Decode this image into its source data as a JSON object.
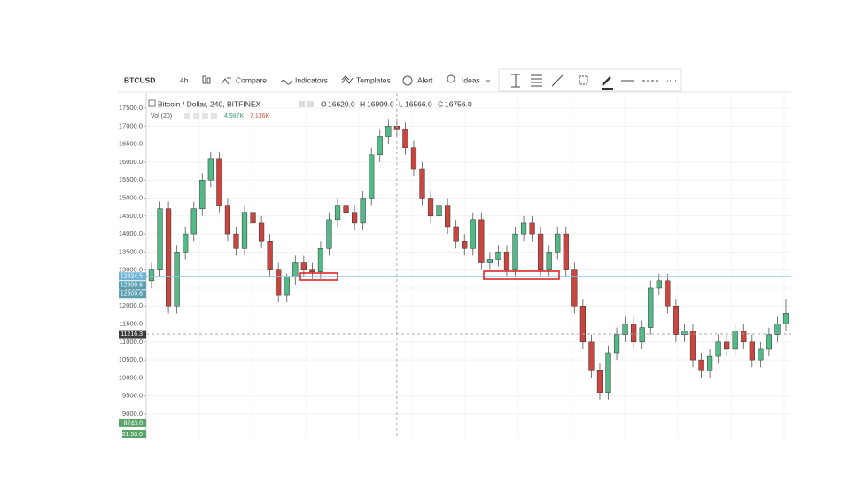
{
  "toolbar": {
    "symbol": "BTCUSD",
    "interval": "4h",
    "items": [
      "Compare",
      "Indicators",
      "Templates",
      "Alert",
      "Ideas"
    ]
  },
  "legend": {
    "title": "Bitcoin / Dollar, 240, BITFINEX",
    "ohlc": [
      {
        "label": "O",
        "value": "16620.0"
      },
      {
        "label": "H",
        "value": "16999.0"
      },
      {
        "label": "L",
        "value": "16566.0"
      },
      {
        "label": "C",
        "value": "16756.0"
      }
    ],
    "volume": {
      "title": "Vol (20)",
      "values": [
        "4.987K",
        "7.136K"
      ]
    }
  },
  "countdown": "01:53:0",
  "chart_data": {
    "type": "candlestick",
    "up_color": "#53b987",
    "down_color": "#c9453f",
    "ylim": [
      8310,
      17920
    ],
    "yticks": [
      {
        "value": 9000,
        "label": "9000.0"
      },
      {
        "value": 9500,
        "label": "9500.0"
      },
      {
        "value": 10000,
        "label": "10000.0"
      },
      {
        "value": 10500,
        "label": "10500.0"
      },
      {
        "value": 11000,
        "label": "11000.0"
      },
      {
        "value": 11500,
        "label": "11500.0"
      },
      {
        "value": 12000,
        "label": "12000.0"
      },
      {
        "value": 12500,
        "label": "12500.0"
      },
      {
        "value": 13000,
        "label": "13000.0"
      },
      {
        "value": 13500,
        "label": "13500.0"
      },
      {
        "value": 14000,
        "label": "14000.0"
      },
      {
        "value": 14500,
        "label": "14500.0"
      },
      {
        "value": 15000,
        "label": "15000.0"
      },
      {
        "value": 15500,
        "label": "15500.0"
      },
      {
        "value": 16000,
        "label": "16000.0"
      },
      {
        "value": 16500,
        "label": "16500.0"
      },
      {
        "value": 17000,
        "label": "17000.0"
      },
      {
        "value": 17500,
        "label": "17500.0"
      }
    ],
    "grid": true,
    "open": [
      12700,
      13000,
      14700,
      12000,
      13500,
      14000,
      14700,
      15500,
      16100,
      14800,
      14000,
      13600,
      14600,
      14300,
      13800,
      13000,
      12300,
      12800,
      13200,
      13000,
      12950,
      13600,
      14400,
      14800,
      14600,
      14300,
      15000,
      16200,
      16700,
      17000,
      16900,
      16400,
      15800,
      15000,
      14500,
      14800,
      14200,
      13800,
      13600,
      14400,
      13200,
      13300,
      13500,
      13000,
      14000,
      14300,
      14000,
      13000,
      13500,
      14000,
      13000,
      12000,
      11000,
      10200,
      9600,
      10700,
      11200,
      11500,
      11000,
      11400,
      12500,
      12700,
      12000,
      11200,
      11300,
      10500,
      10200,
      10600,
      11000,
      10800,
      11300,
      11000,
      10500,
      10800,
      11200,
      11500
    ],
    "high": [
      13200,
      14900,
      14900,
      13700,
      14200,
      14900,
      15700,
      16300,
      16300,
      15000,
      14200,
      14800,
      14800,
      14500,
      14000,
      13200,
      12900,
      13400,
      13400,
      13200,
      13800,
      14600,
      15000,
      15000,
      14800,
      15200,
      16400,
      16900,
      17200,
      17200,
      17100,
      16600,
      16000,
      15200,
      15000,
      15000,
      14400,
      14000,
      14600,
      14600,
      13500,
      13700,
      13700,
      14200,
      14500,
      14500,
      14200,
      13700,
      14200,
      14200,
      13200,
      12200,
      11200,
      10400,
      10900,
      11400,
      11700,
      11700,
      11600,
      12700,
      12900,
      12900,
      12200,
      11500,
      11500,
      10700,
      10800,
      11200,
      11200,
      11500,
      11500,
      11200,
      11000,
      11400,
      11700,
      12200
    ],
    "low": [
      12500,
      12800,
      11800,
      11800,
      13300,
      13800,
      14500,
      15300,
      14600,
      13800,
      13400,
      13400,
      14100,
      13600,
      12800,
      12100,
      12100,
      12600,
      12800,
      12750,
      12750,
      13400,
      14200,
      14400,
      14100,
      14100,
      14800,
      16000,
      16500,
      16700,
      16200,
      15600,
      14800,
      14300,
      14300,
      14000,
      13600,
      13400,
      13400,
      13000,
      13000,
      13100,
      12800,
      12800,
      13800,
      13800,
      12800,
      12800,
      13300,
      12800,
      11800,
      10800,
      10000,
      9400,
      9400,
      10500,
      11000,
      10800,
      10800,
      11200,
      12300,
      11800,
      11000,
      11000,
      10300,
      10000,
      10000,
      10400,
      10600,
      10600,
      10800,
      10300,
      10300,
      10600,
      11000,
      11300
    ],
    "close": [
      13000,
      14700,
      12000,
      13500,
      14000,
      14700,
      15500,
      16100,
      14800,
      14000,
      13600,
      14600,
      14300,
      13800,
      13000,
      12300,
      12800,
      13200,
      13000,
      12950,
      13600,
      14400,
      14800,
      14600,
      14300,
      15000,
      16200,
      16700,
      17000,
      16900,
      16400,
      15800,
      15000,
      14500,
      14800,
      14200,
      13800,
      13600,
      14400,
      13200,
      13300,
      13500,
      13000,
      14000,
      14300,
      14000,
      13000,
      13500,
      14000,
      13000,
      12000,
      11000,
      10200,
      9600,
      10700,
      11200,
      11500,
      11000,
      11400,
      12500,
      12700,
      12000,
      11200,
      11300,
      10500,
      10200,
      10600,
      11000,
      10800,
      11300,
      11000,
      10500,
      10800,
      11200,
      11500,
      11800
    ],
    "price_line": 12824.5,
    "crosshair": {
      "index": 29,
      "price": 11216.3
    },
    "price_labels": [
      {
        "value": 12824.5,
        "label": "12824.5",
        "color": "#6fb4d6"
      },
      {
        "value": 12809.6,
        "label": "12809.6",
        "color": "#5a9fb0"
      },
      {
        "value": 12809.6,
        "label": "12809.6",
        "color": "#5a9fb0"
      },
      {
        "value": 11216.3,
        "label": "11216.3",
        "color": "#3b3b3b"
      },
      {
        "value": 8743.0,
        "label": "8743.0",
        "color": "#5aa46a"
      }
    ]
  }
}
